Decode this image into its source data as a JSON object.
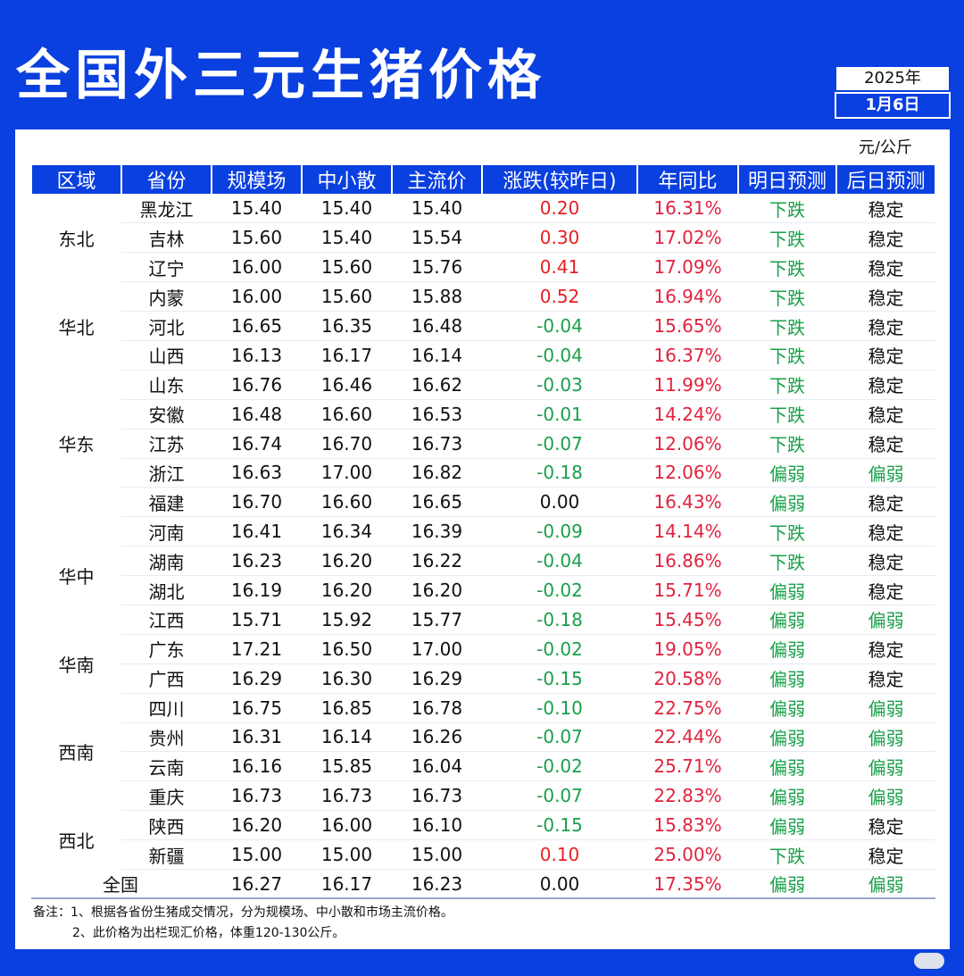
{
  "title": "全国外三元生猪价格",
  "date": {
    "year": "2025年",
    "day": "1月6日"
  },
  "unit": "元/公斤",
  "headers": [
    "区域",
    "省份",
    "规模场",
    "中小散",
    "主流价",
    "涨跌(较昨日)",
    "年同比",
    "明日预测",
    "后日预测"
  ],
  "colors": {
    "background": "#0a3fe0",
    "up": "#e81e24",
    "down": "#19a049",
    "yoy": "#e0233f"
  },
  "rows": [
    {
      "region": "东北",
      "province": "黑龙江",
      "large": "15.40",
      "small": "15.40",
      "main": "15.40",
      "change": "0.20",
      "trend": "up",
      "yoy": "16.31%",
      "tomorrow": "下跌",
      "dayafter": "稳定"
    },
    {
      "region": "",
      "province": "吉林",
      "large": "15.60",
      "small": "15.40",
      "main": "15.54",
      "change": "0.30",
      "trend": "up",
      "yoy": "17.02%",
      "tomorrow": "下跌",
      "dayafter": "稳定"
    },
    {
      "region": "",
      "province": "辽宁",
      "large": "16.00",
      "small": "15.60",
      "main": "15.76",
      "change": "0.41",
      "trend": "up",
      "yoy": "17.09%",
      "tomorrow": "下跌",
      "dayafter": "稳定"
    },
    {
      "region": "华北",
      "province": "内蒙",
      "large": "16.00",
      "small": "15.60",
      "main": "15.88",
      "change": "0.52",
      "trend": "up",
      "yoy": "16.94%",
      "tomorrow": "下跌",
      "dayafter": "稳定"
    },
    {
      "region": "",
      "province": "河北",
      "large": "16.65",
      "small": "16.35",
      "main": "16.48",
      "change": "-0.04",
      "trend": "down",
      "yoy": "15.65%",
      "tomorrow": "下跌",
      "dayafter": "稳定"
    },
    {
      "region": "",
      "province": "山西",
      "large": "16.13",
      "small": "16.17",
      "main": "16.14",
      "change": "-0.04",
      "trend": "down",
      "yoy": "16.37%",
      "tomorrow": "下跌",
      "dayafter": "稳定"
    },
    {
      "region": "华东",
      "province": "山东",
      "large": "16.76",
      "small": "16.46",
      "main": "16.62",
      "change": "-0.03",
      "trend": "down",
      "yoy": "11.99%",
      "tomorrow": "下跌",
      "dayafter": "稳定"
    },
    {
      "region": "",
      "province": "安徽",
      "large": "16.48",
      "small": "16.60",
      "main": "16.53",
      "change": "-0.01",
      "trend": "down",
      "yoy": "14.24%",
      "tomorrow": "下跌",
      "dayafter": "稳定"
    },
    {
      "region": "",
      "province": "江苏",
      "large": "16.74",
      "small": "16.70",
      "main": "16.73",
      "change": "-0.07",
      "trend": "down",
      "yoy": "12.06%",
      "tomorrow": "下跌",
      "dayafter": "稳定"
    },
    {
      "region": "",
      "province": "浙江",
      "large": "16.63",
      "small": "17.00",
      "main": "16.82",
      "change": "-0.18",
      "trend": "down",
      "yoy": "12.06%",
      "tomorrow": "偏弱",
      "dayafter": "偏弱"
    },
    {
      "region": "",
      "province": "福建",
      "large": "16.70",
      "small": "16.60",
      "main": "16.65",
      "change": "0.00",
      "trend": "flat",
      "yoy": "16.43%",
      "tomorrow": "偏弱",
      "dayafter": "稳定"
    },
    {
      "region": "华中",
      "province": "河南",
      "large": "16.41",
      "small": "16.34",
      "main": "16.39",
      "change": "-0.09",
      "trend": "down",
      "yoy": "14.14%",
      "tomorrow": "下跌",
      "dayafter": "稳定"
    },
    {
      "region": "",
      "province": "湖南",
      "large": "16.23",
      "small": "16.20",
      "main": "16.22",
      "change": "-0.04",
      "trend": "down",
      "yoy": "16.86%",
      "tomorrow": "下跌",
      "dayafter": "稳定"
    },
    {
      "region": "",
      "province": "湖北",
      "large": "16.19",
      "small": "16.20",
      "main": "16.20",
      "change": "-0.02",
      "trend": "down",
      "yoy": "15.71%",
      "tomorrow": "偏弱",
      "dayafter": "稳定"
    },
    {
      "region": "",
      "province": "江西",
      "large": "15.71",
      "small": "15.92",
      "main": "15.77",
      "change": "-0.18",
      "trend": "down",
      "yoy": "15.45%",
      "tomorrow": "偏弱",
      "dayafter": "偏弱"
    },
    {
      "region": "华南",
      "province": "广东",
      "large": "17.21",
      "small": "16.50",
      "main": "17.00",
      "change": "-0.02",
      "trend": "down",
      "yoy": "19.05%",
      "tomorrow": "偏弱",
      "dayafter": "稳定"
    },
    {
      "region": "",
      "province": "广西",
      "large": "16.29",
      "small": "16.30",
      "main": "16.29",
      "change": "-0.15",
      "trend": "down",
      "yoy": "20.58%",
      "tomorrow": "偏弱",
      "dayafter": "稳定"
    },
    {
      "region": "西南",
      "province": "四川",
      "large": "16.75",
      "small": "16.85",
      "main": "16.78",
      "change": "-0.10",
      "trend": "down",
      "yoy": "22.75%",
      "tomorrow": "偏弱",
      "dayafter": "偏弱"
    },
    {
      "region": "",
      "province": "贵州",
      "large": "16.31",
      "small": "16.14",
      "main": "16.26",
      "change": "-0.07",
      "trend": "down",
      "yoy": "22.44%",
      "tomorrow": "偏弱",
      "dayafter": "偏弱"
    },
    {
      "region": "",
      "province": "云南",
      "large": "16.16",
      "small": "15.85",
      "main": "16.04",
      "change": "-0.02",
      "trend": "down",
      "yoy": "25.71%",
      "tomorrow": "偏弱",
      "dayafter": "偏弱"
    },
    {
      "region": "",
      "province": "重庆",
      "large": "16.73",
      "small": "16.73",
      "main": "16.73",
      "change": "-0.07",
      "trend": "down",
      "yoy": "22.83%",
      "tomorrow": "偏弱",
      "dayafter": "偏弱"
    },
    {
      "region": "西北",
      "province": "陕西",
      "large": "16.20",
      "small": "16.00",
      "main": "16.10",
      "change": "-0.15",
      "trend": "down",
      "yoy": "15.83%",
      "tomorrow": "偏弱",
      "dayafter": "稳定"
    },
    {
      "region": "",
      "province": "新疆",
      "large": "15.00",
      "small": "15.00",
      "main": "15.00",
      "change": "0.10",
      "trend": "up",
      "yoy": "25.00%",
      "tomorrow": "下跌",
      "dayafter": "稳定"
    }
  ],
  "regions": [
    {
      "name": "东北",
      "span": 3
    },
    {
      "name": "华北",
      "span": 3
    },
    {
      "name": "华东",
      "span": 5
    },
    {
      "name": "华中",
      "span": 4
    },
    {
      "name": "华南",
      "span": 2
    },
    {
      "name": "西南",
      "span": 4
    },
    {
      "name": "西北",
      "span": 2
    }
  ],
  "total": {
    "label": "全国",
    "large": "16.27",
    "small": "16.17",
    "main": "16.23",
    "change": "0.00",
    "yoy": "17.35%",
    "tomorrow": "偏弱",
    "dayafter": "偏弱"
  },
  "notes": [
    "备注：1、根据各省份生猪成交情况，分为规模场、中小散和市场主流价格。",
    "2、此价格为出栏现汇价格，体重120-130公斤。"
  ]
}
